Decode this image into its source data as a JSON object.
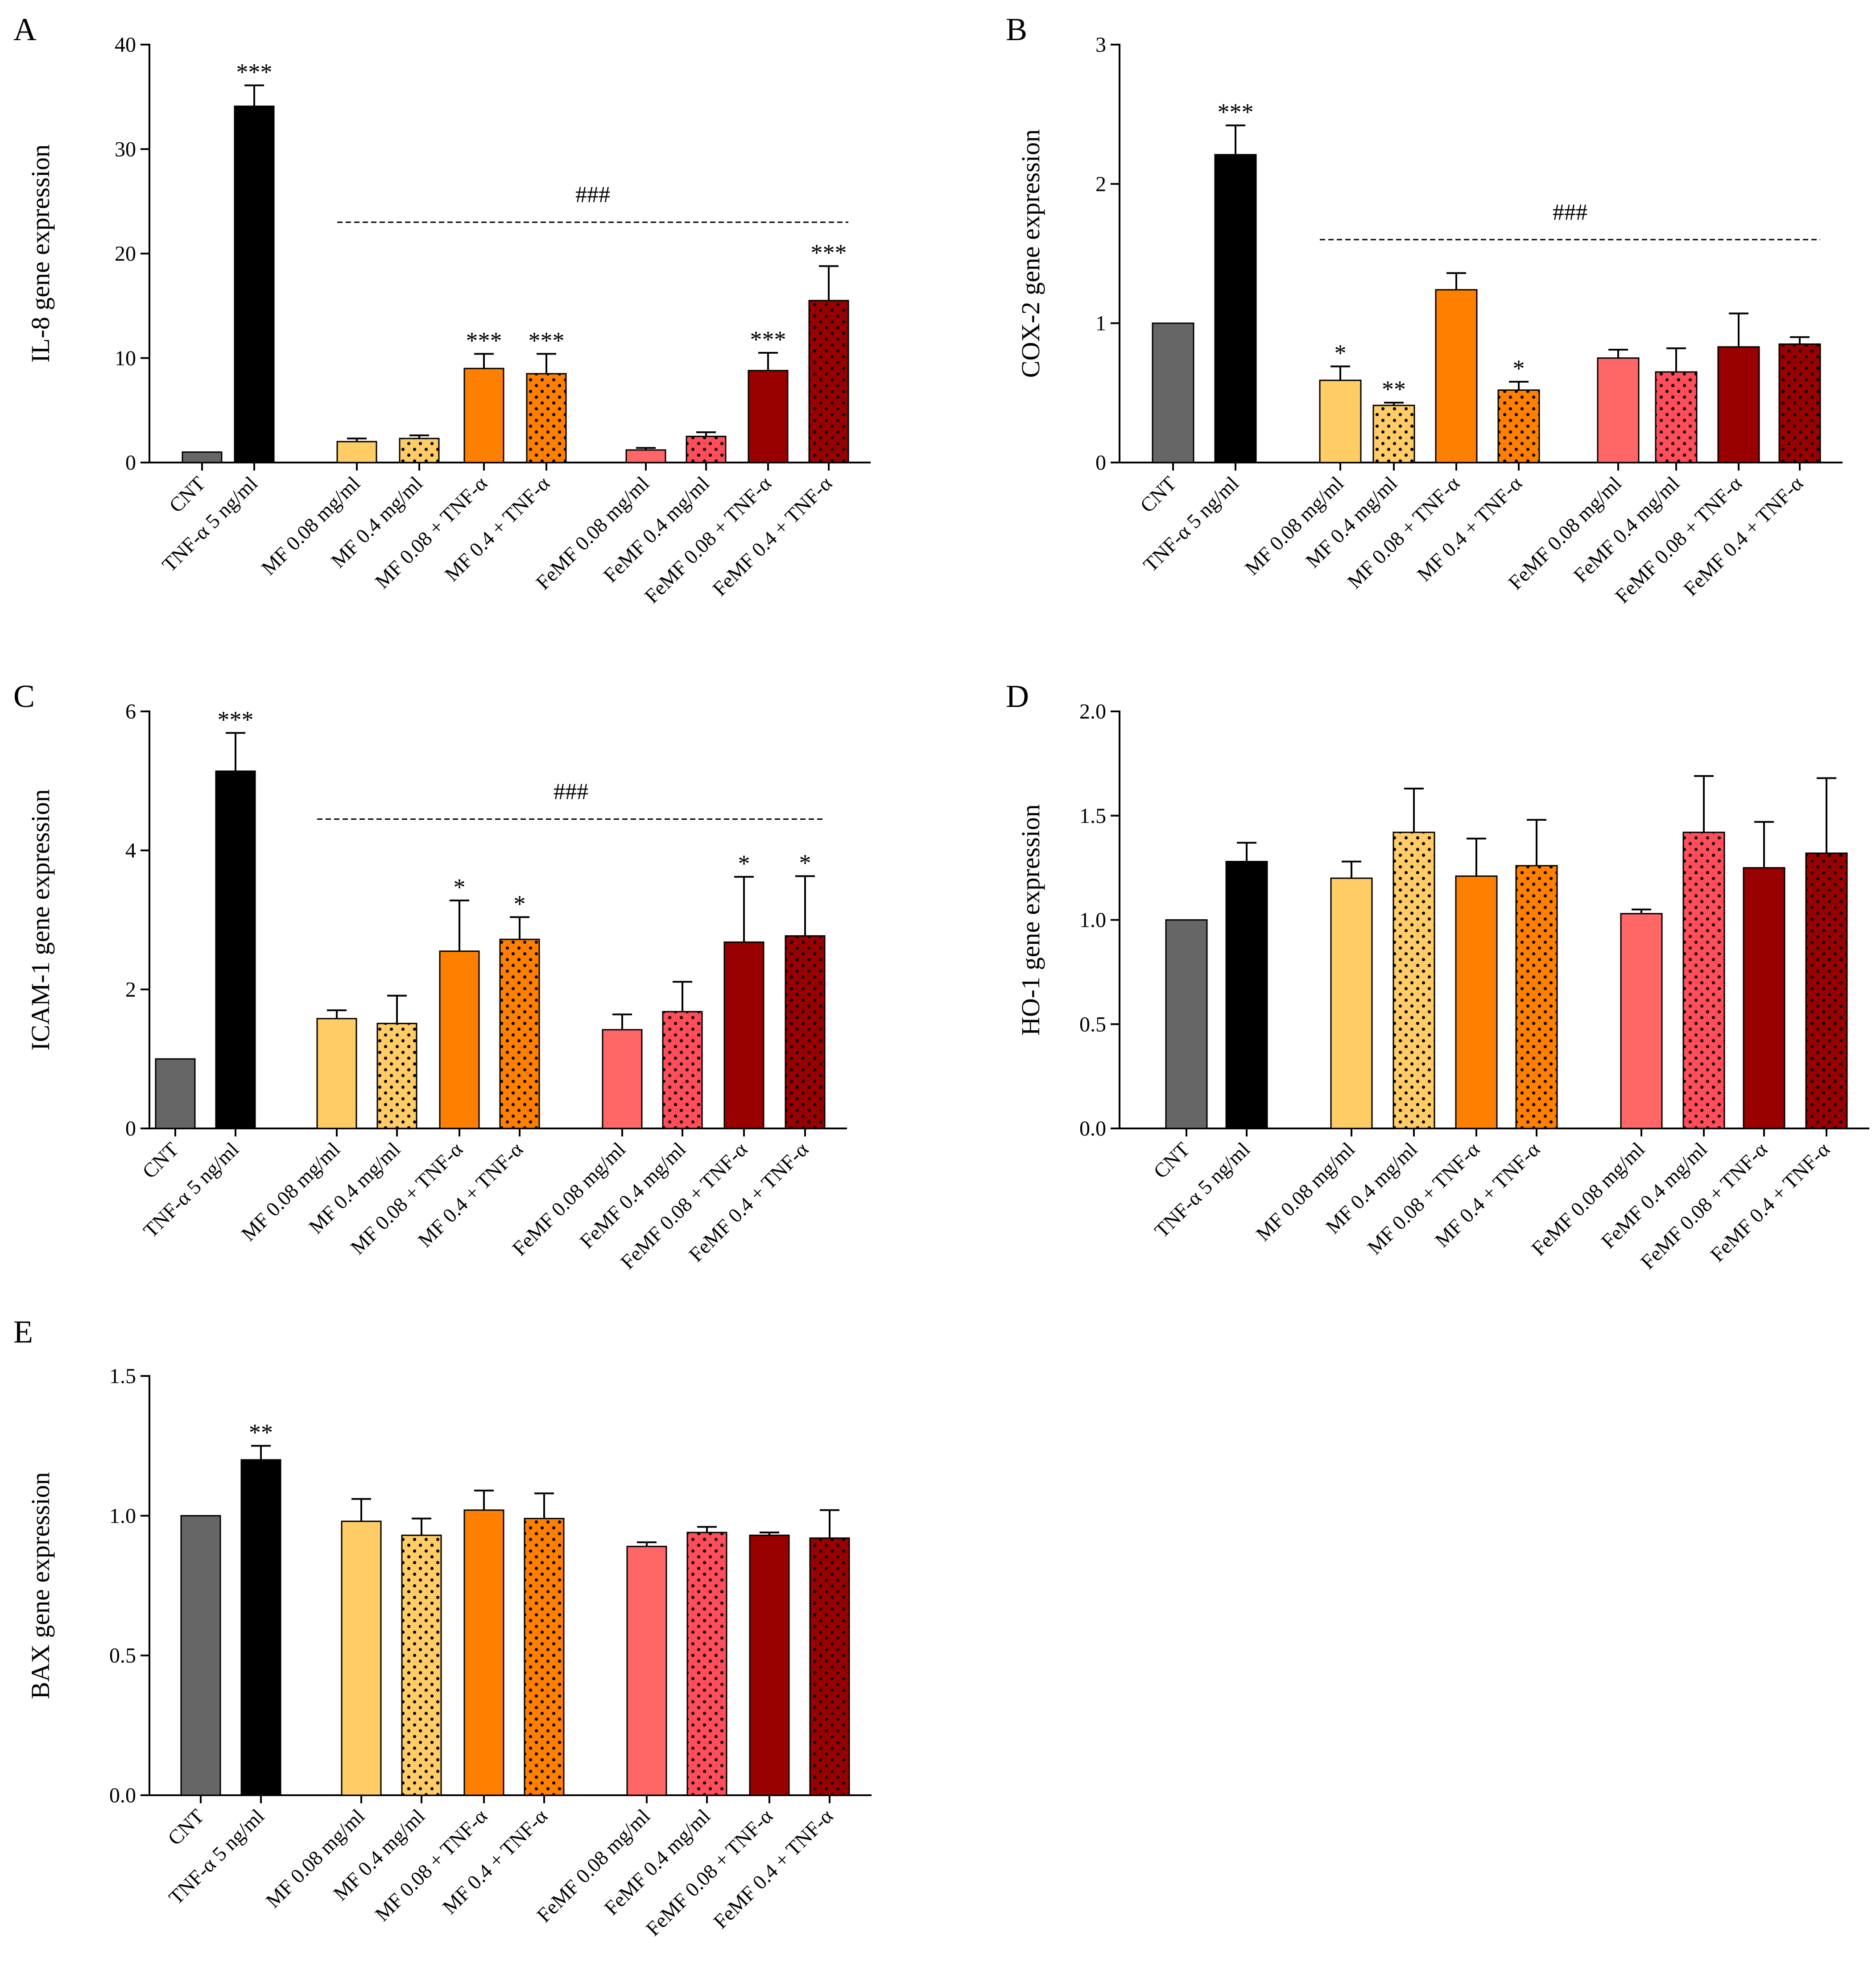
{
  "figure": {
    "categories": [
      "CNT",
      "TNF-α 5 ng/ml",
      "MF 0.08 mg/ml",
      "MF 0.4 mg/ml",
      "MF 0.08 + TNF-α",
      "MF 0.4 + TNF-α",
      "FeMF 0.08 mg/ml",
      "FeMF 0.4 mg/ml",
      "FeMF 0.08 + TNF-α",
      "FeMF 0.4 + TNF-α"
    ],
    "colors": [
      "#666666",
      "#000000",
      "#FFCC66",
      "#FFCC66",
      "#FF8000",
      "#FF8000",
      "#FF6666",
      "#FF4D5A",
      "#990000",
      "#990000"
    ],
    "pattern_dots": [
      false,
      false,
      false,
      true,
      false,
      true,
      false,
      true,
      false,
      true
    ]
  },
  "chart_data": [
    {
      "panel": "A",
      "type": "bar",
      "ylabel": "IL-8 gene expression",
      "ylim": [
        0,
        40
      ],
      "yticks": [
        0,
        10,
        20,
        30,
        40
      ],
      "ytick_labels": [
        "0",
        "10",
        "20",
        "30",
        "40"
      ],
      "values": [
        1.0,
        34.1,
        2.0,
        2.3,
        9.0,
        8.5,
        1.2,
        2.5,
        8.8,
        15.5
      ],
      "errors": [
        0,
        2.0,
        0.3,
        0.3,
        1.4,
        1.9,
        0.2,
        0.4,
        1.7,
        3.3
      ],
      "significance": [
        "",
        "***",
        "",
        "",
        "***",
        "***",
        "",
        "",
        "***",
        "***"
      ],
      "bracket": {
        "label": "###",
        "from_index": 2,
        "to_index": 9,
        "y": 23
      }
    },
    {
      "panel": "B",
      "type": "bar",
      "ylabel": "COX-2 gene expression",
      "ylim": [
        0,
        3
      ],
      "yticks": [
        0,
        1,
        2,
        3
      ],
      "ytick_labels": [
        "0",
        "1",
        "2",
        "3"
      ],
      "values": [
        1.0,
        2.21,
        0.59,
        0.41,
        1.24,
        0.52,
        0.75,
        0.65,
        0.83,
        0.85
      ],
      "errors": [
        0,
        0.21,
        0.1,
        0.02,
        0.12,
        0.06,
        0.06,
        0.17,
        0.24,
        0.05
      ],
      "significance": [
        "",
        "***",
        "*",
        "**",
        "",
        "*",
        "",
        "",
        "",
        ""
      ],
      "bracket": {
        "label": "###",
        "from_index": 2,
        "to_index": 9,
        "y": 1.6
      }
    },
    {
      "panel": "C",
      "type": "bar",
      "ylabel": "ICAM-1 gene expression",
      "ylim": [
        0,
        6
      ],
      "yticks": [
        0,
        2,
        4,
        6
      ],
      "ytick_labels": [
        "0",
        "2",
        "4",
        "6"
      ],
      "values": [
        1.0,
        5.14,
        1.58,
        1.51,
        2.55,
        2.72,
        1.42,
        1.68,
        2.68,
        2.77
      ],
      "errors": [
        0,
        0.55,
        0.12,
        0.4,
        0.73,
        0.32,
        0.22,
        0.43,
        0.94,
        0.86
      ],
      "significance": [
        "",
        "***",
        "",
        "",
        "*",
        "*",
        "",
        "",
        "*",
        "*"
      ],
      "bracket": {
        "label": "###",
        "from_index": 2,
        "to_index": 9,
        "y": 4.45
      }
    },
    {
      "panel": "D",
      "type": "bar",
      "ylabel": "HO-1 gene expression",
      "ylim": [
        0,
        2.0
      ],
      "yticks": [
        0,
        0.5,
        1.0,
        1.5,
        2.0
      ],
      "ytick_labels": [
        "0.0",
        "0.5",
        "1.0",
        "1.5",
        "2.0"
      ],
      "values": [
        1.0,
        1.28,
        1.2,
        1.42,
        1.21,
        1.26,
        1.03,
        1.42,
        1.25,
        1.32
      ],
      "errors": [
        0,
        0.09,
        0.08,
        0.21,
        0.18,
        0.22,
        0.02,
        0.27,
        0.22,
        0.36
      ],
      "significance": [
        "",
        "",
        "",
        "",
        "",
        "",
        "",
        "",
        "",
        ""
      ]
    },
    {
      "panel": "E",
      "type": "bar",
      "ylabel": "BAX gene expression",
      "ylim": [
        0,
        1.5
      ],
      "yticks": [
        0,
        0.5,
        1.0,
        1.5
      ],
      "ytick_labels": [
        "0.0",
        "0.5",
        "1.0",
        "1.5"
      ],
      "values": [
        1.0,
        1.2,
        0.98,
        0.93,
        1.02,
        0.99,
        0.89,
        0.94,
        0.93,
        0.92
      ],
      "errors": [
        0,
        0.05,
        0.08,
        0.06,
        0.07,
        0.09,
        0.015,
        0.02,
        0.01,
        0.1
      ],
      "significance": [
        "",
        "**",
        "",
        "",
        "",
        "",
        "",
        "",
        "",
        ""
      ]
    }
  ]
}
